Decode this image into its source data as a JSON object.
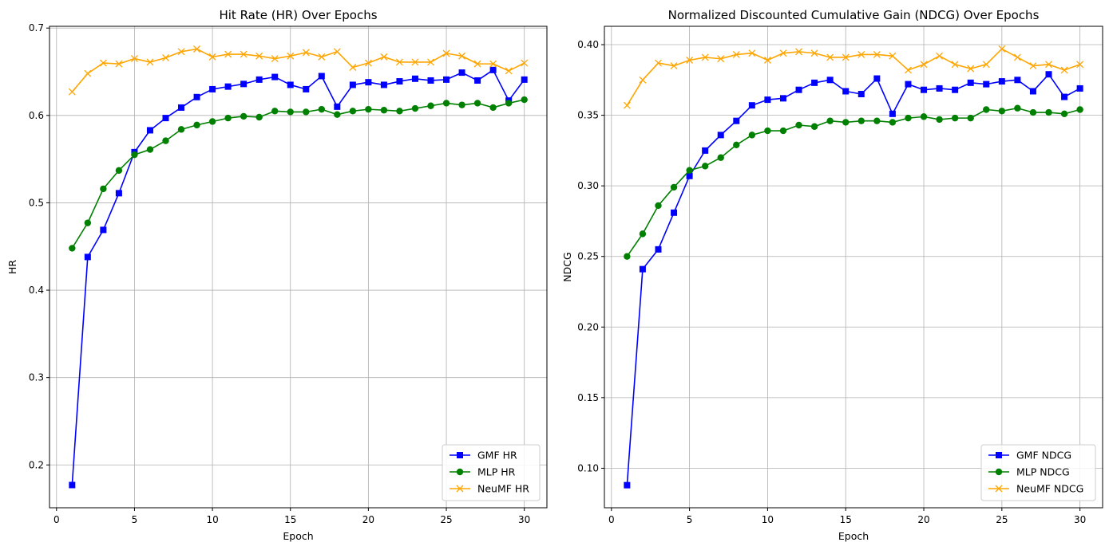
{
  "colors": {
    "gmf": "#0000ff",
    "mlp": "#008000",
    "neumf": "#ffa500"
  },
  "chart_data": [
    {
      "type": "line",
      "title": "Hit Rate (HR) Over Epochs",
      "xlabel": "Epoch",
      "ylabel": "HR",
      "xlim": [
        -0.45,
        31.45
      ],
      "ylim": [
        0.151,
        0.702
      ],
      "xticks": [
        0,
        5,
        10,
        15,
        20,
        25,
        30
      ],
      "yticks": [
        0.2,
        0.3,
        0.4,
        0.5,
        0.6,
        0.7
      ],
      "ytick_labels": [
        "0.2",
        "0.3",
        "0.4",
        "0.5",
        "0.6",
        "0.7"
      ],
      "grid": true,
      "legend_position": "lower-right",
      "x": [
        1,
        2,
        3,
        4,
        5,
        6,
        7,
        8,
        9,
        10,
        11,
        12,
        13,
        14,
        15,
        16,
        17,
        18,
        19,
        20,
        21,
        22,
        23,
        24,
        25,
        26,
        27,
        28,
        29,
        30
      ],
      "series": [
        {
          "name": "GMF HR",
          "color": "#0000ff",
          "marker": "square",
          "values": [
            0.177,
            0.438,
            0.469,
            0.511,
            0.558,
            0.583,
            0.597,
            0.609,
            0.621,
            0.63,
            0.633,
            0.636,
            0.641,
            0.644,
            0.635,
            0.63,
            0.645,
            0.61,
            0.635,
            0.638,
            0.635,
            0.639,
            0.642,
            0.64,
            0.641,
            0.649,
            0.64,
            0.652,
            0.617,
            0.641
          ]
        },
        {
          "name": "MLP HR",
          "color": "#008000",
          "marker": "circle",
          "values": [
            0.448,
            0.477,
            0.516,
            0.537,
            0.555,
            0.561,
            0.571,
            0.584,
            0.589,
            0.593,
            0.597,
            0.599,
            0.598,
            0.605,
            0.604,
            0.604,
            0.607,
            0.601,
            0.605,
            0.607,
            0.606,
            0.605,
            0.608,
            0.611,
            0.614,
            0.612,
            0.614,
            0.609,
            0.614,
            0.618
          ]
        },
        {
          "name": "NeuMF HR",
          "color": "#ffa500",
          "marker": "x",
          "values": [
            0.627,
            0.648,
            0.66,
            0.659,
            0.665,
            0.661,
            0.666,
            0.673,
            0.676,
            0.667,
            0.67,
            0.67,
            0.668,
            0.665,
            0.668,
            0.672,
            0.667,
            0.673,
            0.655,
            0.66,
            0.667,
            0.661,
            0.661,
            0.661,
            0.671,
            0.668,
            0.659,
            0.659,
            0.651,
            0.66
          ]
        }
      ]
    },
    {
      "type": "line",
      "title": "Normalized Discounted Cumulative Gain (NDCG) Over Epochs",
      "xlabel": "Epoch",
      "ylabel": "NDCG",
      "xlim": [
        -0.45,
        31.45
      ],
      "ylim": [
        0.072,
        0.413
      ],
      "xticks": [
        0,
        5,
        10,
        15,
        20,
        25,
        30
      ],
      "yticks": [
        0.1,
        0.15,
        0.2,
        0.25,
        0.3,
        0.35,
        0.4
      ],
      "ytick_labels": [
        "0.10",
        "0.15",
        "0.20",
        "0.25",
        "0.30",
        "0.35",
        "0.40"
      ],
      "grid": true,
      "legend_position": "lower-right",
      "x": [
        1,
        2,
        3,
        4,
        5,
        6,
        7,
        8,
        9,
        10,
        11,
        12,
        13,
        14,
        15,
        16,
        17,
        18,
        19,
        20,
        21,
        22,
        23,
        24,
        25,
        26,
        27,
        28,
        29,
        30
      ],
      "series": [
        {
          "name": "GMF NDCG",
          "color": "#0000ff",
          "marker": "square",
          "values": [
            0.088,
            0.241,
            0.255,
            0.281,
            0.307,
            0.325,
            0.336,
            0.346,
            0.357,
            0.361,
            0.362,
            0.368,
            0.373,
            0.375,
            0.367,
            0.365,
            0.376,
            0.351,
            0.372,
            0.368,
            0.369,
            0.368,
            0.373,
            0.372,
            0.374,
            0.375,
            0.367,
            0.379,
            0.363,
            0.369
          ]
        },
        {
          "name": "MLP NDCG",
          "color": "#008000",
          "marker": "circle",
          "values": [
            0.25,
            0.266,
            0.286,
            0.299,
            0.311,
            0.314,
            0.32,
            0.329,
            0.336,
            0.339,
            0.339,
            0.343,
            0.342,
            0.346,
            0.345,
            0.346,
            0.346,
            0.345,
            0.348,
            0.349,
            0.347,
            0.348,
            0.348,
            0.354,
            0.353,
            0.355,
            0.352,
            0.352,
            0.351,
            0.354
          ]
        },
        {
          "name": "NeuMF NDCG",
          "color": "#ffa500",
          "marker": "x",
          "values": [
            0.357,
            0.375,
            0.387,
            0.385,
            0.389,
            0.391,
            0.39,
            0.393,
            0.394,
            0.389,
            0.394,
            0.395,
            0.394,
            0.391,
            0.391,
            0.393,
            0.393,
            0.392,
            0.382,
            0.386,
            0.392,
            0.386,
            0.383,
            0.386,
            0.397,
            0.391,
            0.385,
            0.386,
            0.382,
            0.386
          ]
        }
      ]
    }
  ]
}
